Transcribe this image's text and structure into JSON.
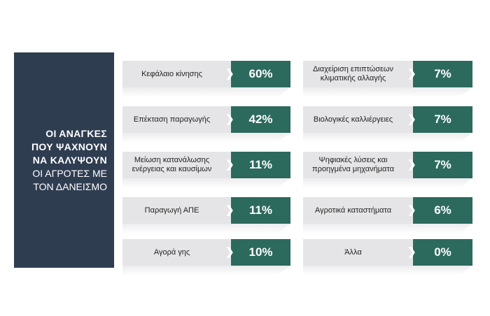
{
  "panel": {
    "line1": "ΟΙ ΑΝΑΓΚΕΣ",
    "line2": "ΠΟΥ ΨΑΧΝΟΥΝ",
    "line3": "ΝΑ ΚΑΛΥΨΟΥΝ",
    "line4": "ΟΙ ΑΓΡΟΤΕΣ ΜΕ",
    "line5": "ΤΟΝ ΔΑΝΕΙΣΜΟ"
  },
  "colors": {
    "panel": "#2f3d51",
    "value": "#2c6a5e",
    "label_bg": "#e5e5e7"
  },
  "chart_data": {
    "type": "table",
    "title": "ΟΙ ΑΝΑΓΚΕΣ ΠΟΥ ΨΑΧΝΟΥΝ ΝΑ ΚΑΛΥΨΟΥΝ ΟΙ ΑΓΡΟΤΕΣ ΜΕ ΤΟΝ ΔΑΝΕΙΣΜΟ",
    "items": [
      {
        "label": "Κεφάλαιο κίνησης",
        "value": "60%"
      },
      {
        "label": "Επέκταση παραγωγής",
        "value": "42%"
      },
      {
        "label": "Μείωση κατανάλωσης ενέργειας και καυσίμων",
        "value": "11%"
      },
      {
        "label": "Παραγωγή ΑΠΕ",
        "value": "11%"
      },
      {
        "label": "Αγορά γης",
        "value": "10%"
      },
      {
        "label": "Διαχείριση επιπτώσεων κλιματικής αλλαγής",
        "value": "7%"
      },
      {
        "label": "Βιολογικές καλλιέργειες",
        "value": "7%"
      },
      {
        "label": "Ψηφιακές λύσεις και προηγμένα μηχανήματα",
        "value": "7%"
      },
      {
        "label": "Αγροτικά καταστήματα",
        "value": "6%"
      },
      {
        "label": "Άλλα",
        "value": "0%"
      }
    ]
  }
}
